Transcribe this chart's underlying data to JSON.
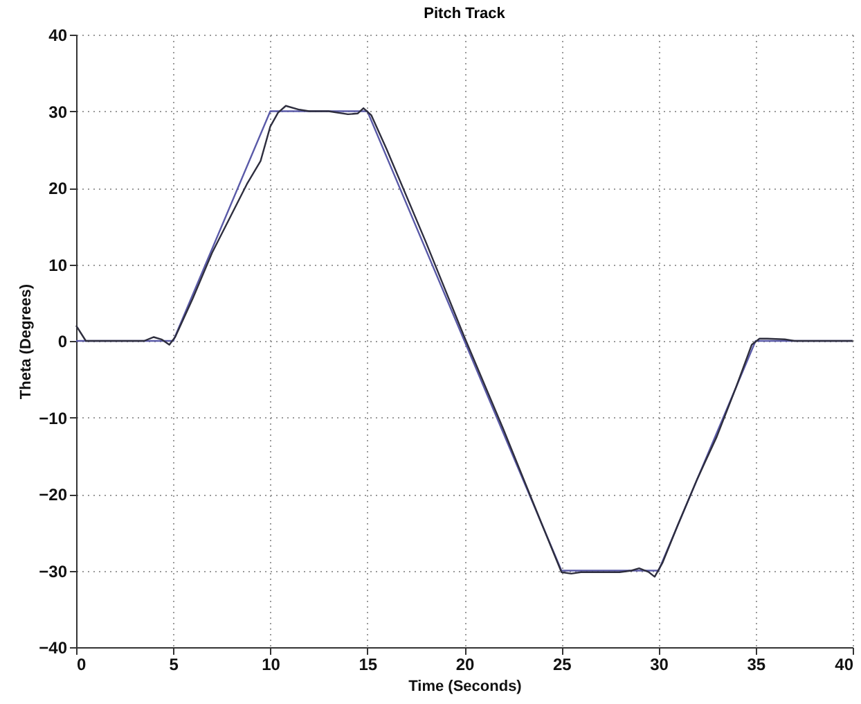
{
  "chart_data": {
    "type": "line",
    "title": "Pitch Track",
    "xlabel": "Time (Seconds)",
    "ylabel": "Theta (Degrees)",
    "xlim": [
      0,
      40
    ],
    "ylim": [
      -40,
      40
    ],
    "xticks": [
      0,
      5,
      10,
      15,
      20,
      25,
      30,
      35,
      40
    ],
    "yticks": [
      -40,
      -30,
      -20,
      -10,
      0,
      10,
      20,
      30,
      40
    ],
    "grid": true,
    "line_style": "solid",
    "marker": "none",
    "series": [
      {
        "color": "#5a5aa8",
        "x": [
          0,
          5,
          10,
          15,
          25,
          30,
          35,
          40
        ],
        "values": [
          0,
          0,
          30,
          30,
          -30,
          -30,
          0,
          0
        ]
      },
      {
        "color": "#2e2e3e",
        "x": [
          0,
          0.2,
          0.5,
          1,
          3.5,
          4,
          4.4,
          4.8,
          5.1,
          6,
          7,
          8,
          8.8,
          9.5,
          10,
          10.4,
          10.8,
          11.5,
          12,
          13,
          14,
          14.5,
          14.8,
          15.2,
          16,
          18,
          20,
          22,
          24,
          25,
          25.5,
          26,
          28,
          28.6,
          29,
          29.5,
          29.8,
          30.2,
          31,
          32,
          33,
          34,
          34.8,
          35.2,
          35.6,
          36.5,
          37,
          40
        ],
        "values": [
          2,
          1.2,
          0,
          0,
          0,
          0.5,
          0.2,
          -0.5,
          0.5,
          5.5,
          11.5,
          16.5,
          20.5,
          23.5,
          28,
          29.8,
          30.7,
          30.2,
          30,
          30,
          29.6,
          29.7,
          30.4,
          29.5,
          25,
          13,
          0.5,
          -11.5,
          -24,
          -30.2,
          -30.4,
          -30.2,
          -30.2,
          -30,
          -29.7,
          -30.2,
          -30.8,
          -29,
          -24,
          -18,
          -12.5,
          -6,
          -0.5,
          0.3,
          0.3,
          0.2,
          0,
          0
        ]
      }
    ]
  }
}
